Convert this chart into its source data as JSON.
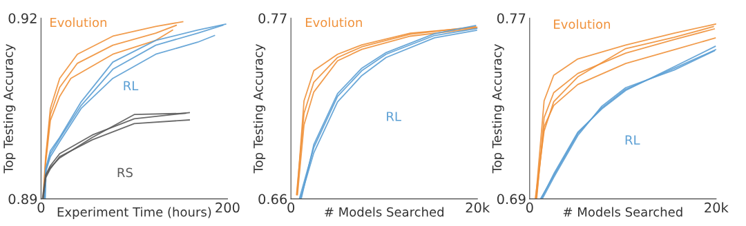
{
  "chart_data": [
    {
      "type": "line",
      "ylabel": "Top Testing Accuracy",
      "xlabel": "Experiment Time (hours)",
      "xlim": [
        0,
        200
      ],
      "ylim": [
        0.89,
        0.92
      ],
      "xticks": [
        0,
        200
      ],
      "yticks": [
        0.89,
        0.92
      ],
      "grid": false,
      "line_style": "solid",
      "marker": "none",
      "annotations": [
        "Evolution",
        "RL",
        "RS"
      ],
      "series": [
        {
          "color": "#f0913a",
          "x": [
            2,
            5,
            10,
            20,
            39,
            77,
            123,
            152
          ],
          "values": [
            0.89,
            0.897,
            0.905,
            0.91,
            0.914,
            0.917,
            0.9186,
            0.9194
          ]
        },
        {
          "color": "#f0913a",
          "x": [
            3,
            5,
            10,
            20,
            32,
            77,
            123,
            141
          ],
          "values": [
            0.89,
            0.896,
            0.903,
            0.907,
            0.91,
            0.914,
            0.9163,
            0.918
          ]
        },
        {
          "color": "#f0913a",
          "x": [
            2.5,
            5,
            10,
            20,
            39,
            77,
            123,
            145
          ],
          "values": [
            0.89,
            0.8965,
            0.904,
            0.9085,
            0.9125,
            0.9155,
            0.9175,
            0.9188
          ]
        },
        {
          "color": "#5b9fd4",
          "x": [
            3.5,
            5,
            10,
            20,
            43,
            77,
            123,
            168,
            198
          ],
          "values": [
            0.89,
            0.895,
            0.898,
            0.9002,
            0.9061,
            0.9127,
            0.9163,
            0.918,
            0.919
          ]
        },
        {
          "color": "#5b9fd4",
          "x": [
            4,
            5,
            10,
            20,
            43,
            77,
            123,
            168,
            186
          ],
          "values": [
            0.89,
            0.8945,
            0.897,
            0.8995,
            0.905,
            0.91,
            0.914,
            0.916,
            0.9171
          ]
        },
        {
          "color": "#5b9fd4",
          "x": [
            4.5,
            5.5,
            10,
            20,
            43,
            77,
            123,
            168,
            195
          ],
          "values": [
            0.89,
            0.895,
            0.8975,
            0.9,
            0.9055,
            0.9115,
            0.9155,
            0.9175,
            0.9188
          ]
        },
        {
          "color": "#5a5a5a",
          "x": [
            1.5,
            5,
            10,
            20,
            55,
            100,
            159
          ],
          "values": [
            0.89,
            0.894,
            0.8955,
            0.8975,
            0.9006,
            0.9033,
            0.9043
          ]
        },
        {
          "color": "#5a5a5a",
          "x": [
            2,
            5,
            10,
            20,
            55,
            100,
            159
          ],
          "values": [
            0.89,
            0.8935,
            0.895,
            0.897,
            0.8998,
            0.9025,
            0.9031
          ]
        },
        {
          "color": "#5a5a5a",
          "x": [
            2.2,
            5,
            10,
            20,
            55,
            100,
            155
          ],
          "values": [
            0.89,
            0.8938,
            0.8952,
            0.8968,
            0.9002,
            0.904,
            0.9042
          ]
        }
      ]
    },
    {
      "type": "line",
      "ylabel": "Top Testing Accuracy",
      "xlabel": "# Models Searched",
      "xlim": [
        0,
        20
      ],
      "ylim": [
        0.66,
        0.77
      ],
      "xticks": [
        0,
        {
          "value": 20,
          "label": "20k"
        }
      ],
      "yticks": [
        0.66,
        0.77
      ],
      "grid": false,
      "line_style": "solid",
      "marker": "none",
      "annotations": [
        "Evolution",
        "RL"
      ],
      "series": [
        {
          "color": "#f0913a",
          "x": [
            0.65,
            1.4,
            2.45,
            5,
            7.6,
            12.8,
            20
          ],
          "values": [
            0.6626,
            0.7196,
            0.738,
            0.748,
            0.7537,
            0.7608,
            0.7644
          ]
        },
        {
          "color": "#f0913a",
          "x": [
            0.7,
            1.4,
            2.45,
            5,
            7.6,
            12.8,
            19.9
          ],
          "values": [
            0.6626,
            0.705,
            0.725,
            0.744,
            0.751,
            0.759,
            0.7638
          ]
        },
        {
          "color": "#f0913a",
          "x": [
            0.6,
            1.4,
            2.45,
            5,
            7.6,
            12.8,
            19.8
          ],
          "values": [
            0.6626,
            0.712,
            0.731,
            0.746,
            0.7525,
            0.7602,
            0.7648
          ]
        },
        {
          "color": "#5b9fd4",
          "x": [
            0.9,
            2.45,
            5,
            7.6,
            10.2,
            15.4,
            20
          ],
          "values": [
            0.66,
            0.6912,
            0.7224,
            0.738,
            0.748,
            0.7594,
            0.7637
          ]
        },
        {
          "color": "#5b9fd4",
          "x": [
            1,
            2.45,
            5,
            7.6,
            10.2,
            15.4,
            19.9
          ],
          "values": [
            0.66,
            0.688,
            0.719,
            0.735,
            0.746,
            0.758,
            0.7625
          ]
        },
        {
          "color": "#5b9fd4",
          "x": [
            1.1,
            2.45,
            5,
            7.6,
            10.2,
            15.4,
            19.8
          ],
          "values": [
            0.66,
            0.693,
            0.724,
            0.7395,
            0.749,
            0.7605,
            0.7655
          ]
        }
      ]
    },
    {
      "type": "line",
      "ylabel": "Top Testing Accuracy",
      "xlabel": "# Models Searched",
      "xlim": [
        0,
        20
      ],
      "ylim": [
        0.69,
        0.77
      ],
      "xticks": [
        0,
        {
          "value": 20,
          "label": "20k"
        }
      ],
      "yticks": [
        0.69,
        0.77
      ],
      "grid": false,
      "line_style": "solid",
      "marker": "none",
      "annotations": [
        "Evolution",
        "RL"
      ],
      "series": [
        {
          "color": "#f0913a",
          "x": [
            0.65,
            1.55,
            2.58,
            5.16,
            10.3,
            15.5,
            20
          ],
          "values": [
            0.69,
            0.7334,
            0.7447,
            0.7519,
            0.7581,
            0.7633,
            0.7674
          ]
        },
        {
          "color": "#f0913a",
          "x": [
            0.7,
            1.55,
            2.58,
            5.16,
            10.3,
            15.5,
            19.9
          ],
          "values": [
            0.69,
            0.722,
            0.7313,
            0.7406,
            0.7499,
            0.756,
            0.7612
          ]
        },
        {
          "color": "#f0913a",
          "x": [
            0.75,
            1.55,
            2.58,
            5.16,
            10.3,
            15.5,
            19.8
          ],
          "values": [
            0.69,
            0.726,
            0.737,
            0.7455,
            0.7545,
            0.7605,
            0.7652
          ]
        },
        {
          "color": "#f0913a",
          "x": [
            0.6,
            1.55,
            2.58,
            5.16,
            10.3,
            15.5,
            19.7
          ],
          "values": [
            0.69,
            0.72,
            0.733,
            0.744,
            0.7565,
            0.7615,
            0.7662
          ]
        },
        {
          "color": "#5b9fd4",
          "x": [
            1.16,
            2.58,
            5.16,
            7.74,
            10.3,
            15.5,
            20
          ],
          "values": [
            0.69,
            0.7003,
            0.7189,
            0.7303,
            0.7385,
            0.7478,
            0.7561
          ]
        },
        {
          "color": "#5b9fd4",
          "x": [
            1.25,
            2.58,
            5.16,
            7.74,
            10.3,
            15.5,
            19.9
          ],
          "values": [
            0.69,
            0.701,
            0.7195,
            0.7298,
            0.738,
            0.7485,
            0.7575
          ]
        },
        {
          "color": "#5b9fd4",
          "x": [
            1.35,
            2.58,
            5.16,
            7.74,
            10.3,
            15.5,
            19.8
          ],
          "values": [
            0.69,
            0.6995,
            0.718,
            0.731,
            0.7392,
            0.747,
            0.7555
          ]
        }
      ]
    }
  ]
}
